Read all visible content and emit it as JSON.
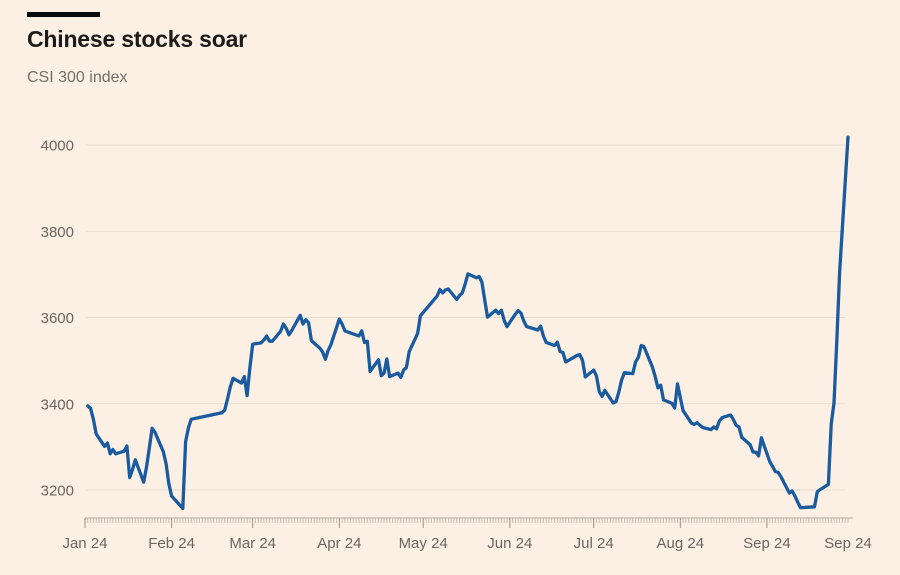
{
  "header": {
    "title": "Chinese stocks soar",
    "subtitle": "CSI 300 index"
  },
  "chart_data": {
    "type": "line",
    "title": "Chinese stocks soar",
    "subtitle": "CSI 300 index",
    "legend": "none",
    "grid": "horizontal",
    "y_axis": {
      "ticks": [
        4000,
        3800,
        3600,
        3400,
        3200
      ],
      "range": [
        3140,
        4060
      ]
    },
    "x_axis": {
      "labels": [
        "Jan 24",
        "Feb 24",
        "Mar 24",
        "Apr 24",
        "May 24",
        "Jun 24",
        "Jul 24",
        "Aug 24",
        "Sep 24",
        "Sep 24"
      ],
      "minor_ticks": "daily",
      "major_ticks": "month-start"
    },
    "series": [
      {
        "name": "CSI 300 index",
        "points": [
          [
            "2024-01-02",
            3395
          ],
          [
            "2024-01-03",
            3389
          ],
          [
            "2024-01-04",
            3364
          ],
          [
            "2024-01-05",
            3330
          ],
          [
            "2024-01-08",
            3301
          ],
          [
            "2024-01-09",
            3309
          ],
          [
            "2024-01-10",
            3284
          ],
          [
            "2024-01-11",
            3294
          ],
          [
            "2024-01-12",
            3284
          ],
          [
            "2024-01-15",
            3290
          ],
          [
            "2024-01-16",
            3302
          ],
          [
            "2024-01-17",
            3229
          ],
          [
            "2024-01-18",
            3247
          ],
          [
            "2024-01-19",
            3270
          ],
          [
            "2024-01-22",
            3218
          ],
          [
            "2024-01-23",
            3253
          ],
          [
            "2024-01-24",
            3297
          ],
          [
            "2024-01-25",
            3343
          ],
          [
            "2024-01-26",
            3334
          ],
          [
            "2024-01-29",
            3289
          ],
          [
            "2024-01-30",
            3261
          ],
          [
            "2024-01-31",
            3215
          ],
          [
            "2024-02-01",
            3186
          ],
          [
            "2024-02-02",
            3179
          ],
          [
            "2024-02-05",
            3157
          ],
          [
            "2024-02-06",
            3312
          ],
          [
            "2024-02-07",
            3344
          ],
          [
            "2024-02-08",
            3364
          ],
          [
            "2024-02-19",
            3379
          ],
          [
            "2024-02-20",
            3385
          ],
          [
            "2024-02-21",
            3411
          ],
          [
            "2024-02-22",
            3439
          ],
          [
            "2024-02-23",
            3459
          ],
          [
            "2024-02-26",
            3448
          ],
          [
            "2024-02-27",
            3463
          ],
          [
            "2024-02-28",
            3419
          ],
          [
            "2024-02-29",
            3484
          ],
          [
            "2024-03-01",
            3538
          ],
          [
            "2024-03-04",
            3541
          ],
          [
            "2024-03-05",
            3548
          ],
          [
            "2024-03-06",
            3557
          ],
          [
            "2024-03-07",
            3545
          ],
          [
            "2024-03-08",
            3545
          ],
          [
            "2024-03-11",
            3568
          ],
          [
            "2024-03-12",
            3585
          ],
          [
            "2024-03-13",
            3575
          ],
          [
            "2024-03-14",
            3560
          ],
          [
            "2024-03-15",
            3570
          ],
          [
            "2024-03-18",
            3605
          ],
          [
            "2024-03-19",
            3585
          ],
          [
            "2024-03-20",
            3595
          ],
          [
            "2024-03-21",
            3588
          ],
          [
            "2024-03-22",
            3546
          ],
          [
            "2024-03-25",
            3529
          ],
          [
            "2024-03-26",
            3520
          ],
          [
            "2024-03-27",
            3503
          ],
          [
            "2024-03-28",
            3524
          ],
          [
            "2024-03-29",
            3537
          ],
          [
            "2024-04-01",
            3596
          ],
          [
            "2024-04-02",
            3585
          ],
          [
            "2024-04-03",
            3569
          ],
          [
            "2024-04-08",
            3557
          ],
          [
            "2024-04-09",
            3569
          ],
          [
            "2024-04-10",
            3542
          ],
          [
            "2024-04-11",
            3545
          ],
          [
            "2024-04-12",
            3475
          ],
          [
            "2024-04-15",
            3502
          ],
          [
            "2024-04-16",
            3465
          ],
          [
            "2024-04-17",
            3471
          ],
          [
            "2024-04-18",
            3504
          ],
          [
            "2024-04-19",
            3463
          ],
          [
            "2024-04-22",
            3471
          ],
          [
            "2024-04-23",
            3461
          ],
          [
            "2024-04-24",
            3478
          ],
          [
            "2024-04-25",
            3484
          ],
          [
            "2024-04-26",
            3521
          ],
          [
            "2024-04-29",
            3563
          ],
          [
            "2024-04-30",
            3604
          ],
          [
            "2024-05-06",
            3650
          ],
          [
            "2024-05-07",
            3665
          ],
          [
            "2024-05-08",
            3657
          ],
          [
            "2024-05-09",
            3664
          ],
          [
            "2024-05-10",
            3666
          ],
          [
            "2024-05-13",
            3642
          ],
          [
            "2024-05-14",
            3651
          ],
          [
            "2024-05-15",
            3657
          ],
          [
            "2024-05-16",
            3677
          ],
          [
            "2024-05-17",
            3701
          ],
          [
            "2024-05-20",
            3692
          ],
          [
            "2024-05-21",
            3695
          ],
          [
            "2024-05-22",
            3682
          ],
          [
            "2024-05-23",
            3641
          ],
          [
            "2024-05-24",
            3601
          ],
          [
            "2024-05-27",
            3617
          ],
          [
            "2024-05-28",
            3609
          ],
          [
            "2024-05-29",
            3617
          ],
          [
            "2024-05-30",
            3593
          ],
          [
            "2024-05-31",
            3579
          ],
          [
            "2024-06-03",
            3608
          ],
          [
            "2024-06-04",
            3616
          ],
          [
            "2024-06-05",
            3610
          ],
          [
            "2024-06-06",
            3592
          ],
          [
            "2024-06-07",
            3579
          ],
          [
            "2024-06-11",
            3571
          ],
          [
            "2024-06-12",
            3580
          ],
          [
            "2024-06-13",
            3557
          ],
          [
            "2024-06-14",
            3542
          ],
          [
            "2024-06-17",
            3535
          ],
          [
            "2024-06-18",
            3543
          ],
          [
            "2024-06-19",
            3521
          ],
          [
            "2024-06-20",
            3519
          ],
          [
            "2024-06-21",
            3497
          ],
          [
            "2024-06-24",
            3508
          ],
          [
            "2024-06-25",
            3512
          ],
          [
            "2024-06-26",
            3514
          ],
          [
            "2024-06-27",
            3501
          ],
          [
            "2024-06-28",
            3462
          ],
          [
            "2024-07-01",
            3478
          ],
          [
            "2024-07-02",
            3464
          ],
          [
            "2024-07-03",
            3428
          ],
          [
            "2024-07-04",
            3417
          ],
          [
            "2024-07-05",
            3431
          ],
          [
            "2024-07-08",
            3402
          ],
          [
            "2024-07-09",
            3405
          ],
          [
            "2024-07-10",
            3427
          ],
          [
            "2024-07-11",
            3455
          ],
          [
            "2024-07-12",
            3472
          ],
          [
            "2024-07-15",
            3470
          ],
          [
            "2024-07-16",
            3497
          ],
          [
            "2024-07-17",
            3508
          ],
          [
            "2024-07-18",
            3535
          ],
          [
            "2024-07-19",
            3532
          ],
          [
            "2024-07-22",
            3485
          ],
          [
            "2024-07-23",
            3463
          ],
          [
            "2024-07-24",
            3437
          ],
          [
            "2024-07-25",
            3443
          ],
          [
            "2024-07-26",
            3409
          ],
          [
            "2024-07-29",
            3401
          ],
          [
            "2024-07-30",
            3390
          ],
          [
            "2024-07-31",
            3446
          ],
          [
            "2024-08-01",
            3414
          ],
          [
            "2024-08-02",
            3384
          ],
          [
            "2024-08-05",
            3355
          ],
          [
            "2024-08-06",
            3352
          ],
          [
            "2024-08-07",
            3356
          ],
          [
            "2024-08-08",
            3350
          ],
          [
            "2024-08-09",
            3345
          ],
          [
            "2024-08-12",
            3340
          ],
          [
            "2024-08-13",
            3346
          ],
          [
            "2024-08-14",
            3342
          ],
          [
            "2024-08-15",
            3360
          ],
          [
            "2024-08-16",
            3368
          ],
          [
            "2024-08-19",
            3374
          ],
          [
            "2024-08-20",
            3363
          ],
          [
            "2024-08-21",
            3350
          ],
          [
            "2024-08-22",
            3346
          ],
          [
            "2024-08-23",
            3322
          ],
          [
            "2024-08-26",
            3305
          ],
          [
            "2024-08-27",
            3288
          ],
          [
            "2024-08-28",
            3288
          ],
          [
            "2024-08-29",
            3279
          ],
          [
            "2024-08-30",
            3321
          ],
          [
            "2024-09-02",
            3266
          ],
          [
            "2024-09-03",
            3255
          ],
          [
            "2024-09-04",
            3243
          ],
          [
            "2024-09-05",
            3241
          ],
          [
            "2024-09-06",
            3231
          ],
          [
            "2024-09-09",
            3193
          ],
          [
            "2024-09-10",
            3198
          ],
          [
            "2024-09-11",
            3186
          ],
          [
            "2024-09-12",
            3172
          ],
          [
            "2024-09-13",
            3159
          ],
          [
            "2024-09-18",
            3161
          ],
          [
            "2024-09-19",
            3196
          ],
          [
            "2024-09-20",
            3201
          ],
          [
            "2024-09-23",
            3213
          ],
          [
            "2024-09-24",
            3352
          ],
          [
            "2024-09-25",
            3402
          ],
          [
            "2024-09-26",
            3545
          ],
          [
            "2024-09-27",
            3704
          ],
          [
            "2024-09-30",
            4018
          ]
        ]
      }
    ],
    "style": {
      "background": "#FCF0E4",
      "line": "#1A5A9E",
      "grid": "#E8DDCF",
      "axis_label": "#6B6661",
      "minor_tick": "#C8BEB2",
      "month_tick": "#9A9085",
      "baseline": "#B2A89C",
      "title_color": "#1D1B19",
      "subtitle_color": "#747069"
    }
  }
}
